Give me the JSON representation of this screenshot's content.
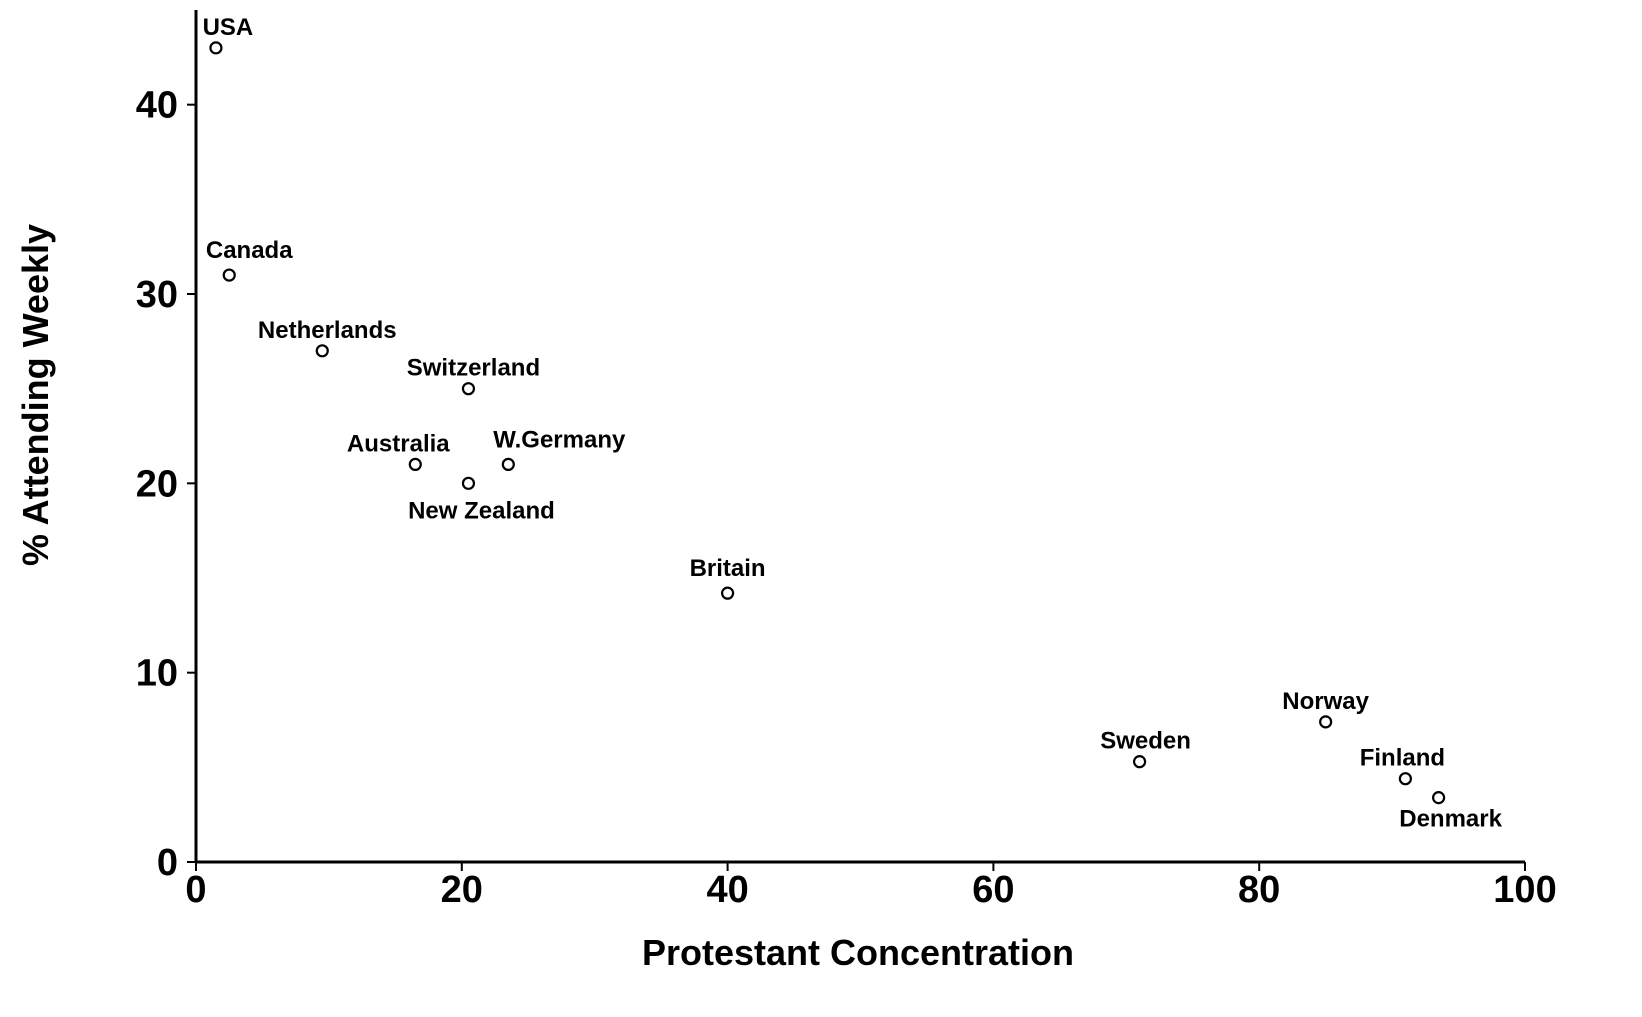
{
  "chart_data": {
    "type": "scatter",
    "title": "",
    "xlabel": "Protestant Concentration",
    "ylabel": "% Attending Weekly",
    "xlim": [
      0,
      100
    ],
    "ylim": [
      0,
      45
    ],
    "xticks": [
      0,
      20,
      40,
      60,
      80,
      100
    ],
    "yticks": [
      0,
      10,
      20,
      30,
      40
    ],
    "grid": false,
    "legend": "none",
    "marker": "hollow circle",
    "points": [
      {
        "label": "USA",
        "x": 1.5,
        "y": 43
      },
      {
        "label": "Canada",
        "x": 2.5,
        "y": 31
      },
      {
        "label": "Netherlands",
        "x": 9.5,
        "y": 27
      },
      {
        "label": "Switzerland",
        "x": 20.5,
        "y": 25
      },
      {
        "label": "Australia",
        "x": 16.5,
        "y": 21
      },
      {
        "label": "W.Germany",
        "x": 23.5,
        "y": 21
      },
      {
        "label": "New Zealand",
        "x": 20.5,
        "y": 20
      },
      {
        "label": "Britain",
        "x": 40,
        "y": 14.2
      },
      {
        "label": "Sweden",
        "x": 71,
        "y": 5.3
      },
      {
        "label": "Norway",
        "x": 85,
        "y": 7.4
      },
      {
        "label": "Finland",
        "x": 91,
        "y": 4.4
      },
      {
        "label": "Denmark",
        "x": 93.5,
        "y": 3.4
      }
    ]
  }
}
